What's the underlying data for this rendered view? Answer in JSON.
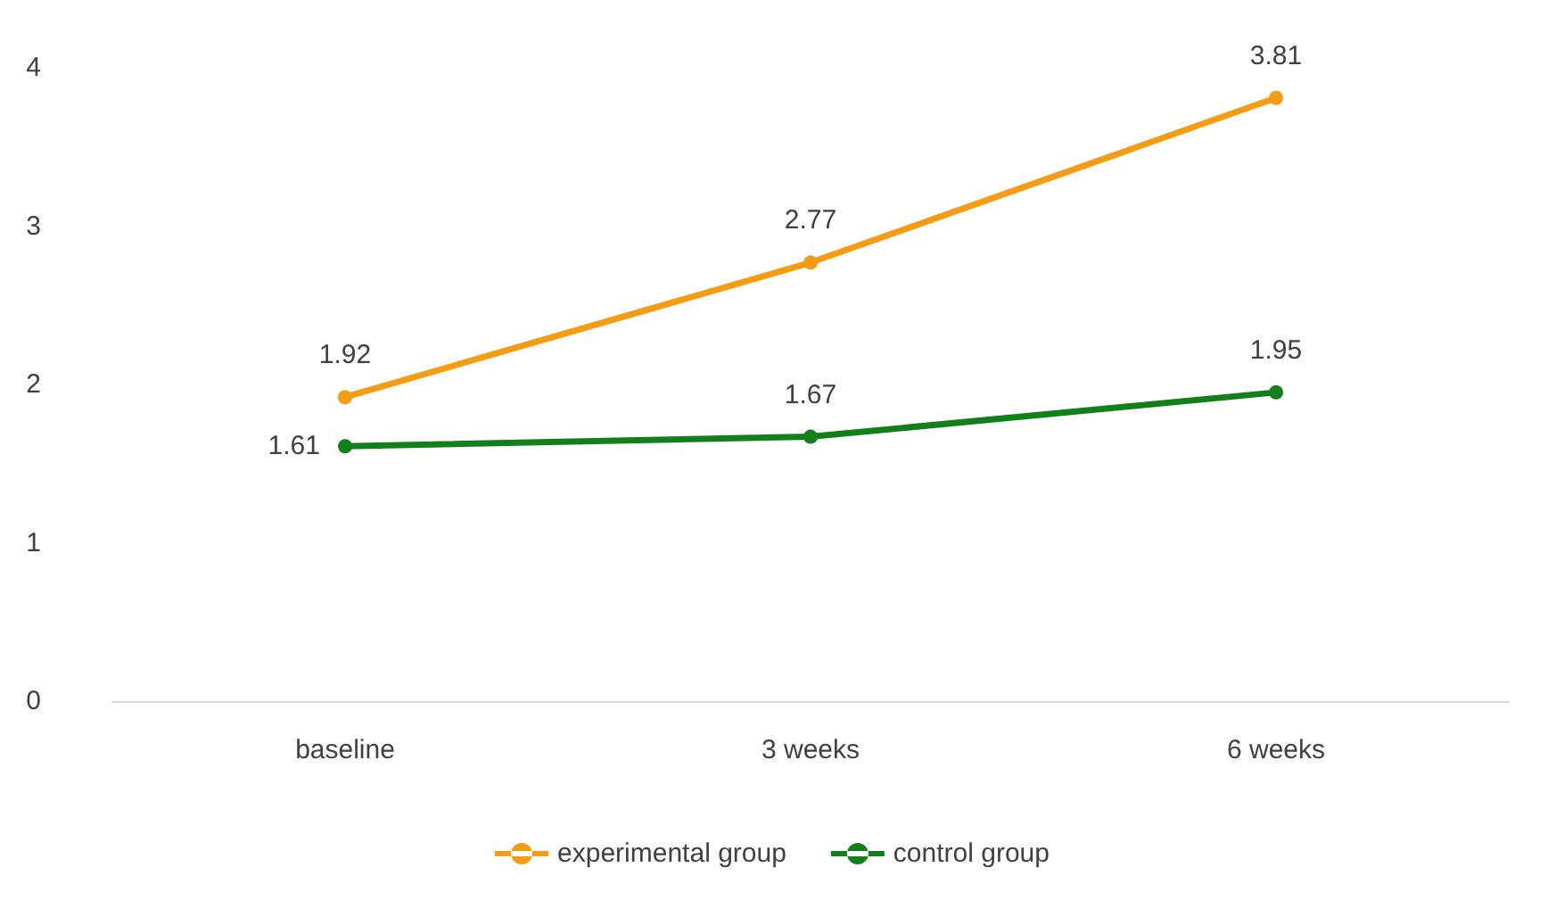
{
  "chart_data": {
    "type": "line",
    "categories": [
      "baseline",
      "3 weeks",
      "6 weeks"
    ],
    "series": [
      {
        "name": "experimental group",
        "color": "#f59c12",
        "values": [
          1.92,
          2.77,
          3.81
        ]
      },
      {
        "name": "control group",
        "color": "#12801a",
        "values": [
          1.61,
          1.67,
          1.95
        ]
      }
    ],
    "ylim": [
      0,
      4
    ],
    "yticks": [
      0,
      1,
      2,
      3,
      4
    ],
    "grid": false,
    "legend": "bottom",
    "marker": "circle",
    "line_style": "solid",
    "data_labels": true
  }
}
